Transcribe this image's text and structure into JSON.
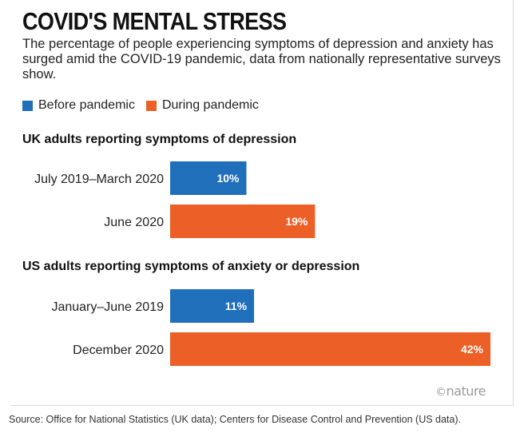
{
  "chart_data": {
    "type": "bar",
    "title": "COVID'S MENTAL STRESS",
    "subtitle": "The percentage of people experiencing symptoms of depression and anxiety has surged amid the COVID-19 pandemic, data from nationally representative surveys show.",
    "legend": [
      {
        "name": "Before pandemic",
        "color": "#1f6fba"
      },
      {
        "name": "During pandemic",
        "color": "#ec5f26"
      }
    ],
    "panels": [
      {
        "title": "UK adults reporting symptoms of depression",
        "bars": [
          {
            "label": "July 2019–March 2020",
            "value": 10,
            "value_label": "10%",
            "series": "Before pandemic"
          },
          {
            "label": "June 2020",
            "value": 19,
            "value_label": "19%",
            "series": "During pandemic"
          }
        ]
      },
      {
        "title": "US adults reporting symptoms of anxiety or depression",
        "bars": [
          {
            "label": "January–June 2019",
            "value": 11,
            "value_label": "11%",
            "series": "Before pandemic"
          },
          {
            "label": "December 2020",
            "value": 42,
            "value_label": "42%",
            "series": "During pandemic"
          }
        ]
      }
    ],
    "value_unit": "%",
    "xlim": [
      0,
      42
    ]
  },
  "branding": {
    "symbol": "©",
    "name": "nature"
  },
  "source": "Source: Office for National Statistics (UK data); Centers for Disease Control and Prevention (US data)."
}
